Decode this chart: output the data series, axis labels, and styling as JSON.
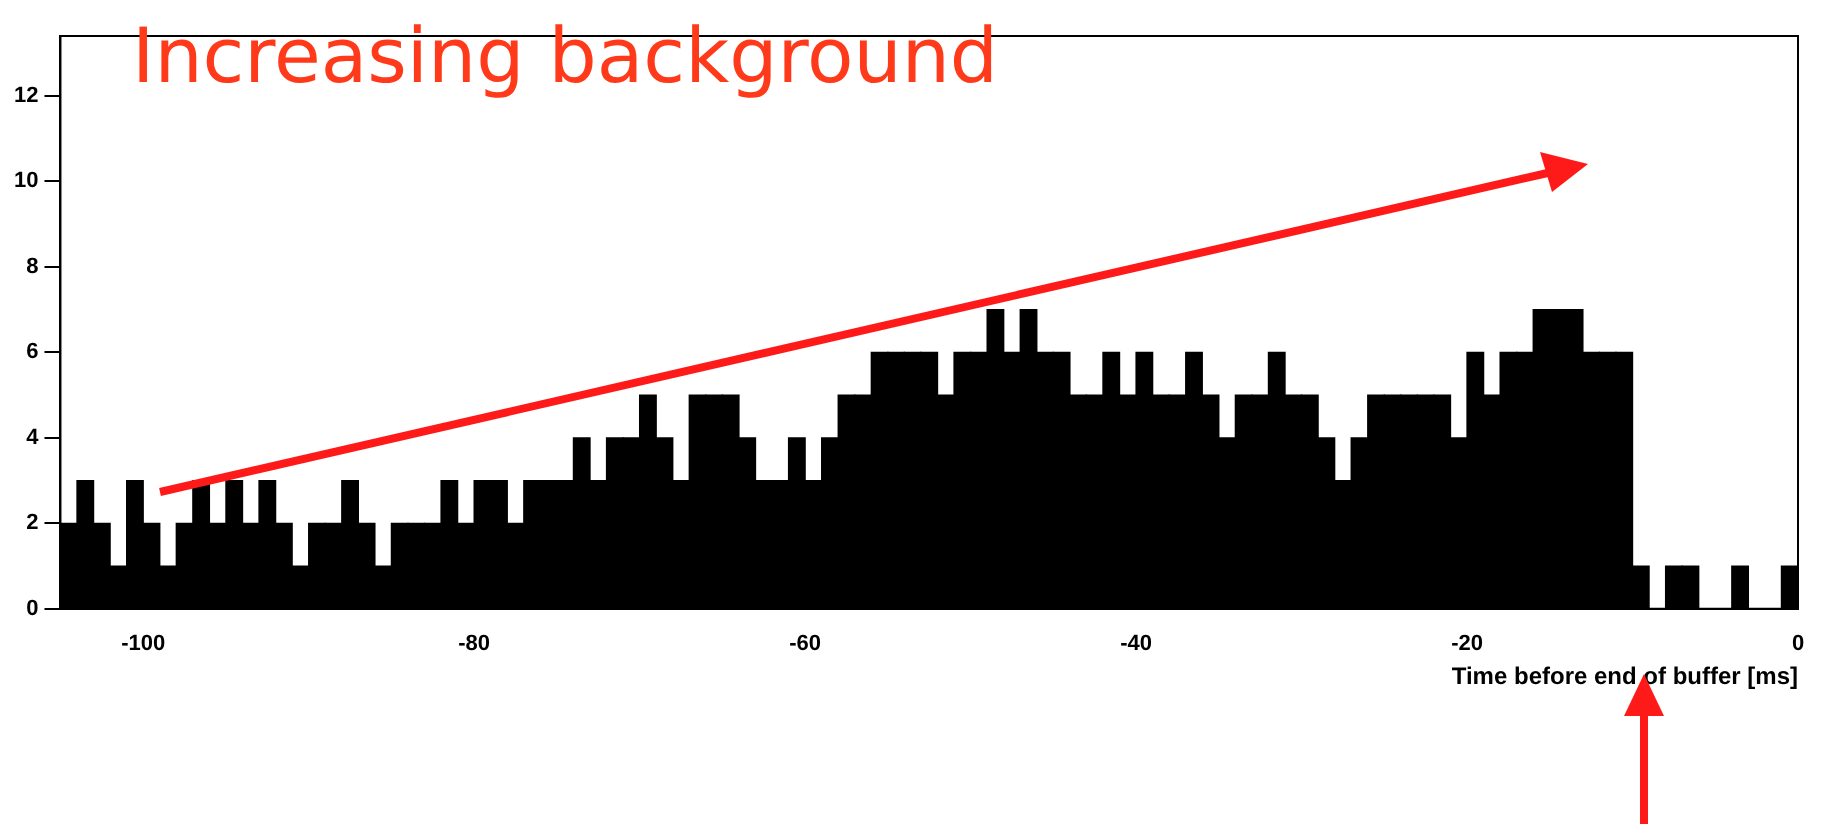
{
  "chart_data": {
    "type": "histogram",
    "xlabel": "Time before end of buffer [ms]",
    "annotations": [
      "Increasing background"
    ],
    "color": "#000000",
    "bins": [
      -105,
      -104,
      -103,
      -102,
      -101,
      -100,
      -99,
      -98,
      -97,
      -96,
      -95,
      -94,
      -93,
      -92,
      -91,
      -90,
      -89,
      -88,
      -87,
      -86,
      -85,
      -84,
      -83,
      -82,
      -81,
      -80,
      -79,
      -78,
      -77,
      -76,
      -75,
      -74,
      -73,
      -72,
      -71,
      -70,
      -69,
      -68,
      -67,
      -66,
      -65,
      -64,
      -63,
      -62,
      -61,
      -60,
      -59,
      -58,
      -57,
      -56,
      -55,
      -54,
      -53,
      -52,
      -51,
      -50,
      -49,
      -48,
      -47,
      -46,
      -45,
      -44,
      -43,
      -42,
      -41,
      -40,
      -39,
      -38,
      -37,
      -36,
      -35,
      -34,
      -33,
      -32,
      -31,
      -30,
      -29,
      -28,
      -27,
      -26,
      -25,
      -24,
      -23,
      -22,
      -21,
      -20,
      -19,
      -18,
      -17,
      -16,
      -15,
      -14,
      -13,
      -12,
      -11,
      -10,
      -9,
      -8,
      -7,
      -6,
      -5,
      -4,
      -3,
      -2,
      -1,
      0
    ],
    "values": [
      2,
      3,
      2,
      1,
      3,
      2,
      1,
      2,
      3,
      2,
      3,
      2,
      3,
      2,
      1,
      2,
      2,
      3,
      2,
      1,
      2,
      2,
      2,
      3,
      2,
      3,
      3,
      2,
      3,
      3,
      3,
      4,
      3,
      4,
      4,
      5,
      4,
      3,
      5,
      5,
      5,
      4,
      3,
      3,
      4,
      3,
      4,
      5,
      5,
      6,
      6,
      6,
      6,
      5,
      6,
      6,
      7,
      6,
      7,
      6,
      6,
      5,
      5,
      6,
      5,
      6,
      5,
      5,
      6,
      5,
      4,
      5,
      5,
      6,
      5,
      5,
      4,
      3,
      4,
      5,
      5,
      5,
      5,
      5,
      4,
      6,
      5,
      6,
      6,
      7,
      7,
      7,
      6,
      6,
      6,
      1,
      0,
      1,
      1,
      0,
      0,
      1,
      0,
      0,
      1
    ],
    "xlim": [
      -105,
      0
    ],
    "ylim": [
      0,
      13.4
    ],
    "xticks": [
      -100,
      -80,
      -60,
      -40,
      -20,
      0
    ],
    "yticks": [
      0,
      2,
      4,
      6,
      8,
      10,
      12
    ]
  }
}
